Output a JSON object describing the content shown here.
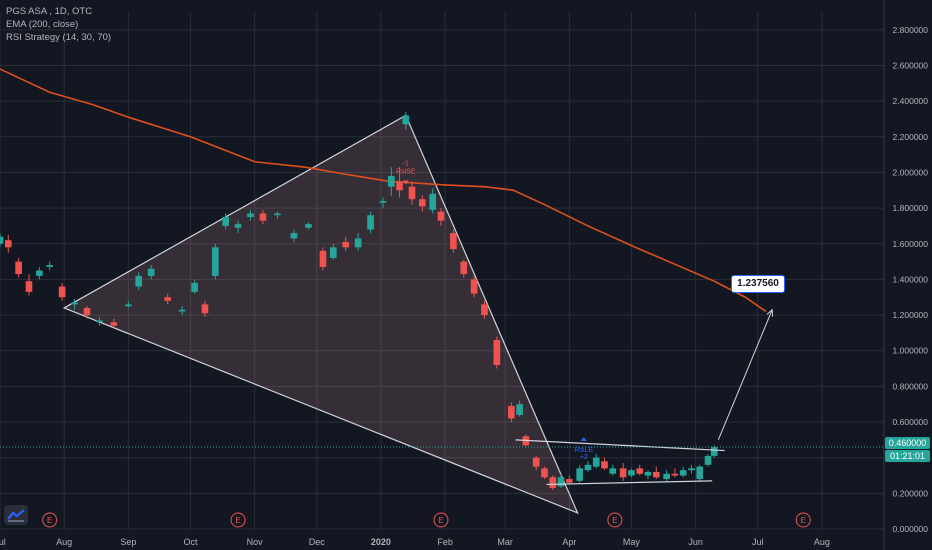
{
  "legend": {
    "symbol": "PGS ASA , 1D, OTC",
    "ema_label": "EMA (200, close)",
    "rsi_label": "RSI Strategy (14, 30, 70)"
  },
  "callout_value": "1.237560",
  "price_tag": {
    "value": "0.460000",
    "countdown": "01:21:01"
  },
  "signal_labels": {
    "long": "RsiLE",
    "long_qty": "+2",
    "short": "RsiSE",
    "short_qty": "-1"
  },
  "earnings_marker": "E",
  "colors": {
    "background": "#131722",
    "grid": "#2a2e39",
    "up_candle": "#26a69a",
    "down_candle": "#ef5350",
    "ema": "#e0501b",
    "triangle_fill": "#f4a9a9",
    "line": "#d1d4dc",
    "callout_border": "#2962ff"
  },
  "chart_data": {
    "type": "candlestick",
    "title": "PGS ASA , 1D, OTC",
    "ylim": [
      0.0,
      2.9
    ],
    "y_ticks": [
      "2.800000",
      "2.600000",
      "2.400000",
      "2.200000",
      "2.000000",
      "1.800000",
      "1.600000",
      "1.400000",
      "1.200000",
      "1.000000",
      "0.800000",
      "0.600000",
      "0.400000",
      "0.200000",
      "0.000000"
    ],
    "x_ticks": [
      "Jul",
      "Aug",
      "Sep",
      "Oct",
      "Nov",
      "Dec",
      "2020",
      "Feb",
      "Mar",
      "Apr",
      "May",
      "Jun",
      "Jul",
      "Aug"
    ],
    "date_range": [
      "2019-07-01",
      "2020-08-31"
    ],
    "series": [
      {
        "name": "EMA (200, close)",
        "points": [
          [
            "2019-07-01",
            2.58
          ],
          [
            "2019-07-25",
            2.45
          ],
          [
            "2019-08-15",
            2.38
          ],
          [
            "2019-09-01",
            2.31
          ],
          [
            "2019-10-01",
            2.2
          ],
          [
            "2019-11-01",
            2.06
          ],
          [
            "2019-11-25",
            2.03
          ],
          [
            "2019-12-15",
            1.99
          ],
          [
            "2020-01-05",
            1.95
          ],
          [
            "2020-02-01",
            1.93
          ],
          [
            "2020-02-20",
            1.92
          ],
          [
            "2020-03-05",
            1.9
          ],
          [
            "2020-03-20",
            1.82
          ],
          [
            "2020-04-10",
            1.7
          ],
          [
            "2020-05-01",
            1.59
          ],
          [
            "2020-05-25",
            1.47
          ],
          [
            "2020-06-10",
            1.39
          ],
          [
            "2020-06-25",
            1.3
          ],
          [
            "2020-07-05",
            1.22
          ]
        ]
      }
    ],
    "candles": [
      {
        "date": "2019-07-01",
        "o": 1.6,
        "h": 1.66,
        "l": 1.58,
        "c": 1.64
      },
      {
        "date": "2019-07-05",
        "o": 1.62,
        "h": 1.65,
        "l": 1.55,
        "c": 1.58
      },
      {
        "date": "2019-07-10",
        "o": 1.5,
        "h": 1.52,
        "l": 1.41,
        "c": 1.43
      },
      {
        "date": "2019-07-15",
        "o": 1.39,
        "h": 1.43,
        "l": 1.31,
        "c": 1.33
      },
      {
        "date": "2019-07-20",
        "o": 1.42,
        "h": 1.47,
        "l": 1.4,
        "c": 1.45
      },
      {
        "date": "2019-07-25",
        "o": 1.47,
        "h": 1.5,
        "l": 1.45,
        "c": 1.48
      },
      {
        "date": "2019-07-31",
        "o": 1.36,
        "h": 1.38,
        "l": 1.28,
        "c": 1.3
      },
      {
        "date": "2019-08-06",
        "o": 1.26,
        "h": 1.29,
        "l": 1.23,
        "c": 1.27
      },
      {
        "date": "2019-08-12",
        "o": 1.24,
        "h": 1.25,
        "l": 1.18,
        "c": 1.2
      },
      {
        "date": "2019-08-18",
        "o": 1.16,
        "h": 1.19,
        "l": 1.14,
        "c": 1.17
      },
      {
        "date": "2019-08-25",
        "o": 1.16,
        "h": 1.18,
        "l": 1.13,
        "c": 1.14
      },
      {
        "date": "2019-09-01",
        "o": 1.25,
        "h": 1.28,
        "l": 1.24,
        "c": 1.26
      },
      {
        "date": "2019-09-06",
        "o": 1.36,
        "h": 1.44,
        "l": 1.34,
        "c": 1.42
      },
      {
        "date": "2019-09-12",
        "o": 1.42,
        "h": 1.48,
        "l": 1.4,
        "c": 1.46
      },
      {
        "date": "2019-09-20",
        "o": 1.3,
        "h": 1.32,
        "l": 1.26,
        "c": 1.28
      },
      {
        "date": "2019-09-27",
        "o": 1.22,
        "h": 1.25,
        "l": 1.2,
        "c": 1.23
      },
      {
        "date": "2019-10-03",
        "o": 1.33,
        "h": 1.4,
        "l": 1.32,
        "c": 1.38
      },
      {
        "date": "2019-10-08",
        "o": 1.26,
        "h": 1.28,
        "l": 1.19,
        "c": 1.21
      },
      {
        "date": "2019-10-13",
        "o": 1.42,
        "h": 1.6,
        "l": 1.4,
        "c": 1.58
      },
      {
        "date": "2019-10-18",
        "o": 1.7,
        "h": 1.77,
        "l": 1.68,
        "c": 1.75
      },
      {
        "date": "2019-10-24",
        "o": 1.69,
        "h": 1.73,
        "l": 1.66,
        "c": 1.71
      },
      {
        "date": "2019-10-30",
        "o": 1.75,
        "h": 1.79,
        "l": 1.73,
        "c": 1.77
      },
      {
        "date": "2019-11-05",
        "o": 1.77,
        "h": 1.79,
        "l": 1.71,
        "c": 1.73
      },
      {
        "date": "2019-11-12",
        "o": 1.76,
        "h": 1.78,
        "l": 1.74,
        "c": 1.77
      },
      {
        "date": "2019-11-20",
        "o": 1.63,
        "h": 1.68,
        "l": 1.61,
        "c": 1.66
      },
      {
        "date": "2019-11-27",
        "o": 1.69,
        "h": 1.72,
        "l": 1.68,
        "c": 1.71
      },
      {
        "date": "2019-12-04",
        "o": 1.56,
        "h": 1.58,
        "l": 1.45,
        "c": 1.47
      },
      {
        "date": "2019-12-09",
        "o": 1.52,
        "h": 1.6,
        "l": 1.51,
        "c": 1.58
      },
      {
        "date": "2019-12-15",
        "o": 1.61,
        "h": 1.64,
        "l": 1.56,
        "c": 1.58
      },
      {
        "date": "2019-12-21",
        "o": 1.58,
        "h": 1.66,
        "l": 1.56,
        "c": 1.63
      },
      {
        "date": "2019-12-27",
        "o": 1.68,
        "h": 1.78,
        "l": 1.66,
        "c": 1.76
      },
      {
        "date": "2020-01-02",
        "o": 1.83,
        "h": 1.86,
        "l": 1.8,
        "c": 1.84
      },
      {
        "date": "2020-01-06",
        "o": 1.92,
        "h": 2.03,
        "l": 1.87,
        "c": 1.98
      },
      {
        "date": "2020-01-10",
        "o": 1.95,
        "h": 2.03,
        "l": 1.86,
        "c": 1.9
      },
      {
        "date": "2020-01-13",
        "o": 2.27,
        "h": 2.34,
        "l": 2.24,
        "c": 2.32
      },
      {
        "date": "2020-01-16",
        "o": 1.92,
        "h": 1.95,
        "l": 1.82,
        "c": 1.85
      },
      {
        "date": "2020-01-21",
        "o": 1.85,
        "h": 1.87,
        "l": 1.78,
        "c": 1.81
      },
      {
        "date": "2020-01-26",
        "o": 1.79,
        "h": 1.91,
        "l": 1.77,
        "c": 1.88
      },
      {
        "date": "2020-01-30",
        "o": 1.78,
        "h": 1.8,
        "l": 1.7,
        "c": 1.73
      },
      {
        "date": "2020-02-05",
        "o": 1.66,
        "h": 1.68,
        "l": 1.55,
        "c": 1.57
      },
      {
        "date": "2020-02-10",
        "o": 1.5,
        "h": 1.51,
        "l": 1.41,
        "c": 1.43
      },
      {
        "date": "2020-02-15",
        "o": 1.4,
        "h": 1.42,
        "l": 1.3,
        "c": 1.32
      },
      {
        "date": "2020-02-20",
        "o": 1.26,
        "h": 1.28,
        "l": 1.18,
        "c": 1.2
      },
      {
        "date": "2020-02-26",
        "o": 1.06,
        "h": 1.08,
        "l": 0.9,
        "c": 0.92
      },
      {
        "date": "2020-03-04",
        "o": 0.69,
        "h": 0.71,
        "l": 0.6,
        "c": 0.62
      },
      {
        "date": "2020-03-08",
        "o": 0.64,
        "h": 0.72,
        "l": 0.63,
        "c": 0.7
      },
      {
        "date": "2020-03-11",
        "o": 0.52,
        "h": 0.53,
        "l": 0.46,
        "c": 0.47
      },
      {
        "date": "2020-03-16",
        "o": 0.4,
        "h": 0.41,
        "l": 0.33,
        "c": 0.35
      },
      {
        "date": "2020-03-20",
        "o": 0.34,
        "h": 0.35,
        "l": 0.28,
        "c": 0.29
      },
      {
        "date": "2020-03-24",
        "o": 0.29,
        "h": 0.3,
        "l": 0.22,
        "c": 0.23
      },
      {
        "date": "2020-03-28",
        "o": 0.24,
        "h": 0.31,
        "l": 0.23,
        "c": 0.29
      },
      {
        "date": "2020-04-01",
        "o": 0.28,
        "h": 0.3,
        "l": 0.25,
        "c": 0.26
      },
      {
        "date": "2020-04-06",
        "o": 0.27,
        "h": 0.36,
        "l": 0.26,
        "c": 0.34
      },
      {
        "date": "2020-04-10",
        "o": 0.33,
        "h": 0.38,
        "l": 0.32,
        "c": 0.36
      },
      {
        "date": "2020-04-14",
        "o": 0.35,
        "h": 0.42,
        "l": 0.34,
        "c": 0.4
      },
      {
        "date": "2020-04-18",
        "o": 0.38,
        "h": 0.4,
        "l": 0.33,
        "c": 0.34
      },
      {
        "date": "2020-04-22",
        "o": 0.31,
        "h": 0.36,
        "l": 0.3,
        "c": 0.34
      },
      {
        "date": "2020-04-27",
        "o": 0.34,
        "h": 0.37,
        "l": 0.27,
        "c": 0.29
      },
      {
        "date": "2020-05-01",
        "o": 0.3,
        "h": 0.34,
        "l": 0.29,
        "c": 0.33
      },
      {
        "date": "2020-05-05",
        "o": 0.34,
        "h": 0.36,
        "l": 0.3,
        "c": 0.31
      },
      {
        "date": "2020-05-09",
        "o": 0.3,
        "h": 0.33,
        "l": 0.28,
        "c": 0.32
      },
      {
        "date": "2020-05-13",
        "o": 0.32,
        "h": 0.35,
        "l": 0.28,
        "c": 0.29
      },
      {
        "date": "2020-05-18",
        "o": 0.28,
        "h": 0.33,
        "l": 0.27,
        "c": 0.31
      },
      {
        "date": "2020-05-22",
        "o": 0.31,
        "h": 0.34,
        "l": 0.29,
        "c": 0.3
      },
      {
        "date": "2020-05-26",
        "o": 0.3,
        "h": 0.35,
        "l": 0.29,
        "c": 0.33
      },
      {
        "date": "2020-05-30",
        "o": 0.33,
        "h": 0.36,
        "l": 0.31,
        "c": 0.34
      },
      {
        "date": "2020-06-03",
        "o": 0.28,
        "h": 0.36,
        "l": 0.27,
        "c": 0.35
      },
      {
        "date": "2020-06-07",
        "o": 0.36,
        "h": 0.42,
        "l": 0.35,
        "c": 0.41
      },
      {
        "date": "2020-06-10",
        "o": 0.41,
        "h": 0.47,
        "l": 0.4,
        "c": 0.46
      }
    ],
    "drawings": {
      "triangle": [
        [
          "2019-08-01",
          1.24
        ],
        [
          "2020-01-13",
          2.32
        ],
        [
          "2020-04-05",
          0.09
        ]
      ],
      "pennant_upper": [
        [
          "2020-03-06",
          0.5
        ],
        [
          "2020-06-15",
          0.44
        ]
      ],
      "pennant_lower": [
        [
          "2020-03-21",
          0.25
        ],
        [
          "2020-06-09",
          0.27
        ]
      ],
      "projection_arrow": [
        [
          "2020-06-12",
          0.5
        ],
        [
          "2020-07-08",
          1.23
        ]
      ],
      "current_price": 0.46
    },
    "earnings_dates": [
      "2019-07-25",
      "2019-10-24",
      "2020-01-30",
      "2020-04-23",
      "2020-07-23"
    ],
    "signals": [
      {
        "date": "2020-01-13",
        "value": 2.0,
        "type": "short"
      },
      {
        "date": "2020-04-08",
        "value": 0.46,
        "type": "long"
      }
    ],
    "grid": true,
    "legend_position": "top-left"
  }
}
